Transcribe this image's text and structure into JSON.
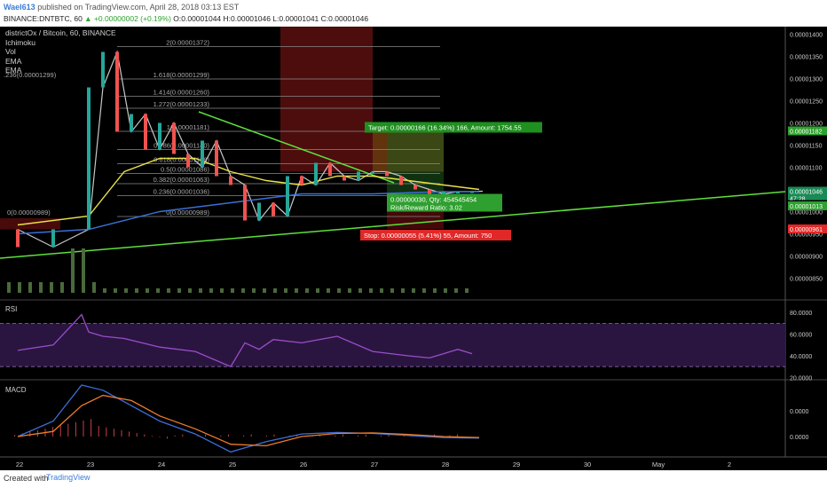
{
  "header": {
    "author": "Wael613",
    "published_text": "published on TradingView.com, April 28, 2018 03:13 EST",
    "symbol": "BINANCE:DNTBTC, 60",
    "change": "▲ +0.00000002 (+0.19%)",
    "ohlc": "O:0.00001044 H:0.00001046 L:0.00001041 C:0.00001046"
  },
  "legend": {
    "title": "districtOx / Bitcoin, 60, BINANCE",
    "indicators": [
      "Ichimoku",
      "Vol",
      "EMA",
      "EMA"
    ]
  },
  "footer": {
    "created": "Created with",
    "brand": "TradingView"
  },
  "colors": {
    "up": "#26a69a",
    "down": "#ef5350",
    "trend": "#5fe03c",
    "ema_fast": "#e8e24a",
    "ema_slow": "#3b6fd8",
    "rsi": "#9b4dca",
    "macd": "#3b6fd8",
    "signal": "#f07c2b"
  },
  "chart_data": [
    {
      "type": "line",
      "pane": "price",
      "y_ticks": [
        "0.00001400",
        "0.00001350",
        "0.00001300",
        "0.00001250",
        "0.00001200",
        "0.00001150",
        "0.00001100",
        "0.00001050",
        "0.00001000",
        "0.00000950",
        "0.00000900",
        "0.00000850"
      ],
      "x_ticks": [
        "22",
        "23",
        "24",
        "25",
        "26",
        "27",
        "28",
        "29",
        "30",
        "May",
        "2"
      ],
      "ylim": [
        8.2e-06,
        1.42e-05
      ],
      "series": [
        {
          "x": [
            0,
            0.5,
            1,
            1.2,
            1.4,
            1.6,
            1.8,
            2,
            2.2,
            2.4,
            2.6,
            2.8,
            3,
            3.2,
            3.4,
            3.6,
            3.8,
            4,
            4.2,
            4.4,
            4.6,
            4.8,
            5,
            5.2,
            5.4,
            5.6,
            5.8,
            6,
            6.2,
            6.4,
            6.55
          ],
          "values": [
            9.6,
            9.2,
            9.6,
            12.8,
            13.6,
            11.8,
            12.2,
            11.4,
            12.0,
            11.3,
            11.0,
            11.6,
            10.8,
            10.6,
            9.8,
            10.2,
            9.9,
            10.8,
            10.6,
            11.1,
            10.8,
            10.7,
            10.9,
            10.9,
            10.8,
            10.6,
            10.5,
            10.4,
            10.45,
            10.45,
            10.46
          ]
        },
        {
          "name": "EMA",
          "x": [
            0,
            1,
            1.5,
            2,
            2.5,
            3,
            3.5,
            4,
            4.5,
            5,
            5.5,
            6,
            6.5
          ],
          "values": [
            9.7,
            9.9,
            10.9,
            11.2,
            11.2,
            10.9,
            10.7,
            10.6,
            10.8,
            10.8,
            10.7,
            10.6,
            10.5
          ]
        },
        {
          "name": "EMA",
          "x": [
            0,
            1,
            2,
            3,
            4,
            5,
            6,
            6.5
          ],
          "values": [
            9.5,
            9.6,
            10.0,
            10.2,
            10.4,
            10.4,
            10.45,
            10.45
          ]
        }
      ],
      "fib_levels": [
        {
          "label": "2(0.00001372)",
          "value": 13.72
        },
        {
          "label": "1.618(0.00001299)",
          "value": 12.99
        },
        {
          "label": "1.414(0.00001260)",
          "value": 12.6
        },
        {
          "label": "1.272(0.00001233)",
          "value": 12.33
        },
        {
          "label": "1(0.00001181)",
          "value": 11.81
        },
        {
          "label": "0.786(0.00001140)",
          "value": 11.4
        },
        {
          "label": "0.618(0.00001108)",
          "value": 11.08
        },
        {
          "label": "0.5(0.00001086)",
          "value": 10.86
        },
        {
          "label": "0.382(0.00001063)",
          "value": 10.63
        },
        {
          "label": "0.236(0.00001036)",
          "value": 10.36
        },
        {
          "label": "0(0.00000989)",
          "value": 9.89
        },
        {
          "label": ".236(0.00001299)",
          "value": 12.99
        },
        {
          "label": "0(0.00000989)",
          "value": 9.89
        }
      ],
      "position": {
        "target": "Target: 0.00000166 (16.34%) 166, Amount: 1754.55",
        "entry": "0.00000030, Qty: 454545454",
        "ratio": "Risk/Reward Ratio: 3.02",
        "stop": "Stop: 0.00000055 (5.41%) 55, Amount: 750"
      },
      "price_labels": [
        {
          "text": "0.00001182",
          "color": "#2ea12e"
        },
        {
          "text": "0.00001046",
          "color": "#1a8a55"
        },
        {
          "text": "47:28",
          "color": "#1a8a55"
        },
        {
          "text": "0.00001016",
          "color": "#ffffff"
        },
        {
          "text": "0.00001013",
          "color": "#2ea12e"
        },
        {
          "text": "0.00000961",
          "color": "#e02828"
        }
      ]
    },
    {
      "type": "line",
      "pane": "RSI",
      "title": "RSI",
      "y_ticks": [
        "80.0000",
        "60.0000",
        "40.0000",
        "20.0000"
      ],
      "ylim": [
        20,
        90
      ],
      "x": [
        0,
        0.5,
        0.9,
        1,
        1.2,
        1.5,
        2,
        2.5,
        3,
        3.2,
        3.4,
        3.6,
        4,
        4.5,
        5,
        5.5,
        5.8,
        6,
        6.2,
        6.4
      ],
      "values": [
        45,
        50,
        78,
        62,
        58,
        56,
        48,
        44,
        30,
        52,
        46,
        55,
        52,
        58,
        44,
        40,
        38,
        42,
        46,
        42
      ]
    },
    {
      "type": "line",
      "pane": "MACD",
      "title": "MACD",
      "y_ticks": [
        "0.0000",
        "0.0000"
      ],
      "series": [
        {
          "name": "MACD",
          "x": [
            0,
            0.5,
            0.9,
            1.2,
            1.6,
            2,
            2.5,
            3,
            3.5,
            4,
            4.5,
            5,
            5.5,
            6,
            6.5
          ],
          "values": [
            0,
            0.3,
            1.0,
            0.9,
            0.6,
            0.3,
            0.05,
            -0.3,
            -0.1,
            0.05,
            0.08,
            0.06,
            0.02,
            -0.02,
            -0.03
          ]
        },
        {
          "name": "Signal",
          "x": [
            0,
            0.5,
            0.9,
            1.2,
            1.6,
            2,
            2.5,
            3,
            3.5,
            4,
            4.5,
            5,
            5.5,
            6,
            6.5
          ],
          "values": [
            0,
            0.1,
            0.6,
            0.8,
            0.7,
            0.4,
            0.15,
            -0.15,
            -0.18,
            0.0,
            0.06,
            0.07,
            0.04,
            0.0,
            -0.02
          ]
        }
      ]
    }
  ]
}
